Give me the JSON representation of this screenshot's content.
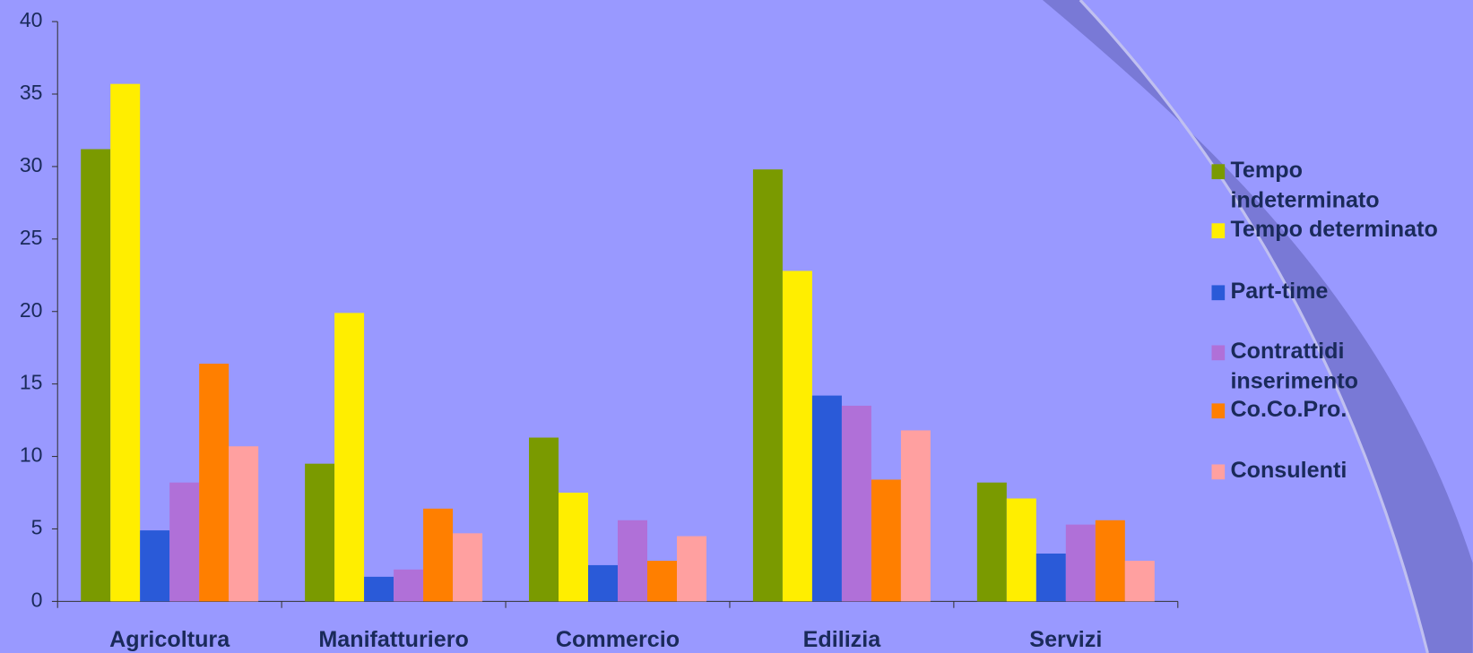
{
  "chart_data": {
    "type": "bar",
    "categories": [
      "Agricoltura",
      "Manifatturiero",
      "Commercio",
      "Edilizia",
      "Servizi"
    ],
    "series": [
      {
        "name": "Tempo indeterminato",
        "color": "#7a9a00",
        "values": [
          31.2,
          9.5,
          11.3,
          29.8,
          8.2
        ]
      },
      {
        "name": "Tempo determinato",
        "color": "#ffee00",
        "values": [
          35.7,
          19.9,
          7.5,
          22.8,
          7.1
        ]
      },
      {
        "name": "Part-time",
        "color": "#2a5ad8",
        "values": [
          4.9,
          1.7,
          2.5,
          14.2,
          3.3
        ]
      },
      {
        "name": "Contrattidi inserimento",
        "color": "#b070d8",
        "values": [
          8.2,
          2.2,
          5.6,
          13.5,
          5.3
        ]
      },
      {
        "name": "Co.Co.Pro.",
        "color": "#ff7f00",
        "values": [
          16.4,
          6.4,
          2.8,
          8.4,
          5.6
        ]
      },
      {
        "name": "Consulenti",
        "color": "#ffa0a0",
        "values": [
          10.7,
          4.7,
          4.5,
          11.8,
          2.8
        ]
      }
    ],
    "ylim": [
      0,
      40
    ],
    "yticks": [
      0,
      5,
      10,
      15,
      20,
      25,
      30,
      35,
      40
    ],
    "grid": false,
    "legend": "right"
  }
}
